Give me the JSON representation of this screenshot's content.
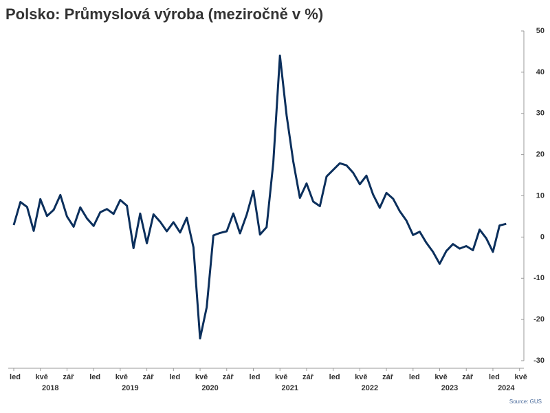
{
  "chart_data": {
    "type": "line",
    "title": "Polsko: Průmyslová výroba (meziročně v %)",
    "source": "Source: GUS",
    "categories": [
      "led",
      null,
      null,
      null,
      "kvě",
      null,
      null,
      null,
      "zář",
      null,
      null,
      null,
      "led",
      null,
      null,
      null,
      "kvě",
      null,
      null,
      null,
      "zář",
      null,
      null,
      null,
      "led",
      null,
      null,
      null,
      "kvě",
      null,
      null,
      null,
      "zář",
      null,
      null,
      null,
      "led",
      null,
      null,
      null,
      "kvě",
      null,
      null,
      null,
      "zář",
      null,
      null,
      null,
      "led",
      null,
      null,
      null,
      "kvě",
      null,
      null,
      null,
      "zář",
      null,
      null,
      null,
      "led",
      null,
      null,
      null,
      "kvě",
      null,
      null,
      null,
      "zář",
      null,
      null,
      null,
      "led",
      null,
      null,
      null,
      "kvě"
    ],
    "years": [
      "2018",
      "2019",
      "2020",
      "2021",
      "2022",
      "2023",
      "2024"
    ],
    "series": [
      {
        "name": "Průmyslová výroba",
        "color": "#0b2f5c",
        "values": [
          2.9,
          8.5,
          7.3,
          1.5,
          9.2,
          5.1,
          6.6,
          10.2,
          5.0,
          2.5,
          7.2,
          4.5,
          2.7,
          6.0,
          6.8,
          5.6,
          9.0,
          7.6,
          -2.7,
          5.7,
          -1.5,
          5.5,
          3.7,
          1.4,
          3.6,
          1.1,
          4.7,
          -2.5,
          -24.6,
          -17.0,
          0.4,
          1.0,
          1.4,
          5.7,
          0.9,
          5.4,
          11.2,
          0.6,
          2.4,
          18.0,
          44.0,
          29.5,
          18.3,
          9.5,
          13.0,
          8.6,
          7.5,
          14.7,
          16.3,
          17.9,
          17.4,
          15.6,
          12.8,
          14.9,
          10.3,
          7.1,
          10.7,
          9.3,
          6.3,
          4.0,
          0.5,
          1.3,
          -1.4,
          -3.6,
          -6.5,
          -3.4,
          -1.7,
          -2.8,
          -2.2,
          -3.2,
          1.8,
          -0.3,
          -3.6,
          2.8,
          3.2,
          null,
          null
        ]
      }
    ],
    "ylim": [
      -30,
      50
    ],
    "yticks": [
      -30,
      -20,
      -10,
      0,
      10,
      20,
      30,
      40,
      50
    ]
  }
}
